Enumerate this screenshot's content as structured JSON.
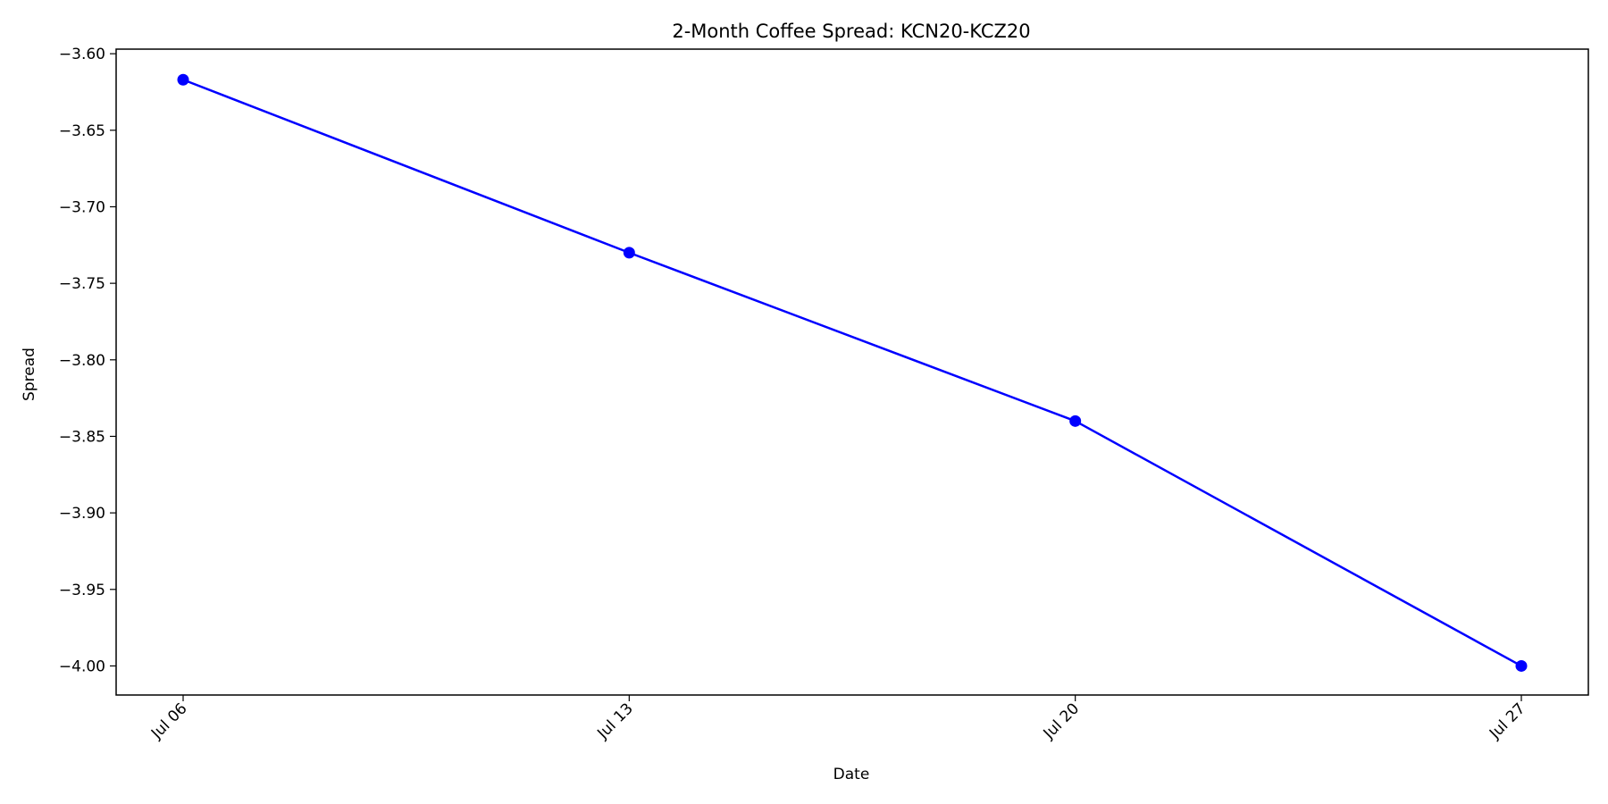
{
  "chart_data": {
    "type": "line",
    "title": "2-Month Coffee Spread: KCN20-KCZ20",
    "xlabel": "Date",
    "ylabel": "Spread",
    "x": [
      "Jul 06",
      "Jul 13",
      "Jul 20",
      "Jul 27"
    ],
    "series": [
      {
        "values": [
          -3.617,
          -3.73,
          -3.84,
          -4.0
        ],
        "color": "#0000ff",
        "marker": "circle"
      }
    ],
    "x_ticks": [
      "Jul 06",
      "Jul 13",
      "Jul 20",
      "Jul 27"
    ],
    "y_ticks": [
      "−3.60",
      "−3.65",
      "−3.70",
      "−3.75",
      "−3.80",
      "−3.85",
      "−3.90",
      "−3.95",
      "−4.00"
    ],
    "y_tick_values": [
      -3.6,
      -3.65,
      -3.7,
      -3.75,
      -3.8,
      -3.85,
      -3.9,
      -3.95,
      -4.0
    ],
    "ylim": [
      -4.019,
      -3.597
    ],
    "grid": false,
    "legend": "none"
  }
}
